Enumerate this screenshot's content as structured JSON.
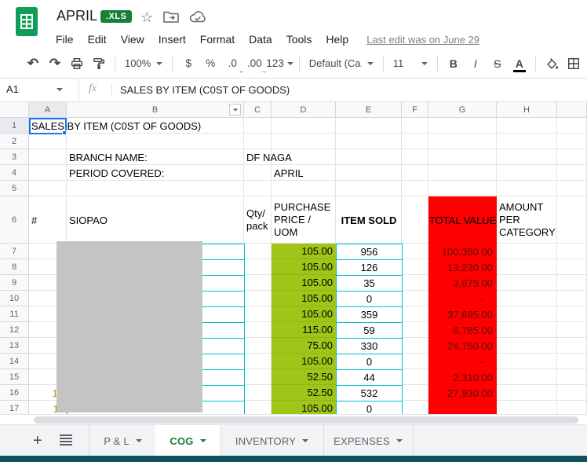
{
  "titlebar": {
    "title": "APRIL",
    "file_type_badge": ".XLS"
  },
  "menubar": {
    "items": [
      "File",
      "Edit",
      "View",
      "Insert",
      "Format",
      "Data",
      "Tools",
      "Help"
    ],
    "last_edit": "Last edit was on June 29"
  },
  "toolbar": {
    "zoom": "100%",
    "currency": "$",
    "percent": "%",
    "decrease_decimal": ".0",
    "increase_decimal": ".00",
    "more_formats": "123",
    "font": "Default (Ca...",
    "font_size": "11",
    "bold": "B",
    "italic": "I",
    "strikethrough": "S",
    "text_color": "A"
  },
  "formula_bar": {
    "cell_ref": "A1",
    "fx_label": "fx",
    "value": "SALES BY ITEM (C0ST OF GOODS)"
  },
  "sheet": {
    "column_headers": [
      "A",
      "B",
      "C",
      "D",
      "E",
      "F",
      "G",
      "H",
      ""
    ],
    "row_headers": [
      "1",
      "2",
      "3",
      "4",
      "5",
      "6",
      "7",
      "8",
      "9",
      "10",
      "11",
      "12",
      "13",
      "14",
      "15",
      "16",
      "17"
    ],
    "cells": {
      "A1": "SALES BY ITEM (C0ST OF GOODS)",
      "B3": "BRANCH NAME:",
      "C3": "DF NAGA",
      "B4": "PERIOD COVERED:",
      "D4": "APRIL",
      "A6": "#",
      "B6": "SIOPAO",
      "C6": "Qty/\npack",
      "D6": "PURCHASE PRICE / UOM",
      "E6": "ITEM SOLD",
      "G6": "TOTAL VALUE",
      "H6": "AMOUNT PER CATEGORY"
    },
    "data_rows": [
      {
        "row": "7",
        "item": "",
        "price": "105.00",
        "sold": "956",
        "total": "100,380.00"
      },
      {
        "row": "8",
        "item": "",
        "price": "105.00",
        "sold": "126",
        "total": "13,230.00"
      },
      {
        "row": "9",
        "item": "",
        "price": "105.00",
        "sold": "35",
        "total": "3,675.00"
      },
      {
        "row": "10",
        "item": "",
        "price": "105.00",
        "sold": "0",
        "total": "-"
      },
      {
        "row": "11",
        "item": "",
        "price": "105.00",
        "sold": "359",
        "total": "37,695.00"
      },
      {
        "row": "12",
        "item": "",
        "price": "115.00",
        "sold": "59",
        "total": "6,785.00"
      },
      {
        "row": "13",
        "item": "",
        "price": "75.00",
        "sold": "330",
        "total": "24,750.00"
      },
      {
        "row": "14",
        "item": "",
        "price": "105.00",
        "sold": "0",
        "total": "-"
      },
      {
        "row": "15",
        "item": "",
        "price": "52.50",
        "sold": "44",
        "total": "2,310.00"
      },
      {
        "row": "16",
        "item": "10",
        "price": "52.50",
        "sold": "532",
        "total": "27,930.00"
      },
      {
        "row": "17",
        "item": "11",
        "price": "105.00",
        "sold": "0",
        "total": ""
      }
    ]
  },
  "tabbar": {
    "tabs": [
      {
        "label": "P & L",
        "active": false
      },
      {
        "label": "COG",
        "active": true
      },
      {
        "label": "INVENTORY",
        "active": false
      },
      {
        "label": "EXPENSES",
        "active": false
      }
    ]
  },
  "colors": {
    "cell-green": "#9fc519",
    "cell-red": "#ff0000",
    "total-text": "#5b0f00",
    "cyan": "#00bcd4",
    "tab-green": "#188038",
    "sel-blue": "#1a73e8",
    "badge-green": "#188038",
    "logo-green": "#0f9d58",
    "item-yellow": "#bf9000",
    "teal": "#0d545c"
  }
}
